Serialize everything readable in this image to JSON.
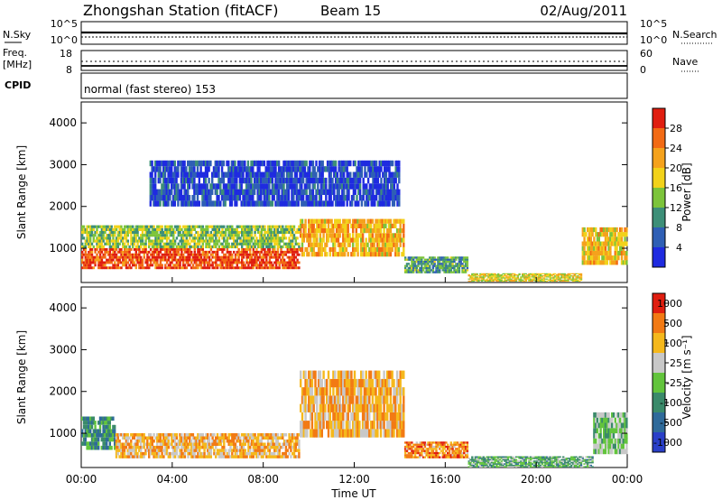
{
  "header": {
    "station": "Zhongshan Station (fitACF)",
    "beam": "Beam 15",
    "date": "02/Aug/2011"
  },
  "strip_nsky": {
    "left_label": "N.Sky",
    "right_label": "N.Search",
    "axis_top": "10^5",
    "axis_bottom": "10^0",
    "right_axis_top": "10^5",
    "right_axis_bottom": "10^0"
  },
  "strip_freq": {
    "left_label": "Freq.",
    "left_units": "[MHz]",
    "axis_top": "18",
    "axis_bottom": "8",
    "right_axis_top": "60",
    "right_axis_bottom": "0",
    "right_label": "Nave"
  },
  "cpid": {
    "label": "CPID",
    "mode_text": "normal (fast stereo) 153"
  },
  "axes": {
    "xlabel": "Time UT",
    "ylabel": "Slant Range [km]",
    "x_ticks": [
      "00:00",
      "04:00",
      "08:00",
      "12:00",
      "16:00",
      "20:00",
      "00:00"
    ],
    "y_ticks": [
      "1000",
      "2000",
      "3000",
      "4000"
    ]
  },
  "colorbars": {
    "power": {
      "label": "Power [dB]",
      "ticks": [
        "4",
        "8",
        "12",
        "16",
        "20",
        "24",
        "28"
      ],
      "colors": [
        "#1f2be0",
        "#2f5fb5",
        "#3d8f78",
        "#7cc43a",
        "#f2d21a",
        "#f5a21c",
        "#f26a14",
        "#e01e10"
      ]
    },
    "velocity": {
      "label": "Velocity [m s⁻¹]",
      "ticks": [
        "1000",
        "500",
        "100",
        "25",
        "-25",
        "-100",
        "-500",
        "-1000"
      ],
      "colors": [
        "#2a3fc8",
        "#2f6a9a",
        "#3a8a6a",
        "#62c43c",
        "#c8c8c8",
        "#f5b81c",
        "#f27a14",
        "#e01e10"
      ]
    }
  },
  "chart_data": [
    {
      "type": "heatmap",
      "name": "power",
      "x_range": [
        "00:00",
        "00:00"
      ],
      "ylim": [
        180,
        4500
      ],
      "bands": [
        {
          "t0": 0.0,
          "t1": 9.6,
          "range": [
            500,
            1000
          ],
          "level": 0.88
        },
        {
          "t0": 9.6,
          "t1": 14.2,
          "range": [
            800,
            1700
          ],
          "level": 0.65
        },
        {
          "t0": 0.0,
          "t1": 9.6,
          "range": [
            1000,
            1550
          ],
          "level": 0.45
        },
        {
          "t0": 14.2,
          "t1": 17.0,
          "range": [
            400,
            800
          ],
          "level": 0.35
        },
        {
          "t0": 17.0,
          "t1": 22.0,
          "range": [
            200,
            400
          ],
          "level": 0.55
        },
        {
          "t0": 22.0,
          "t1": 24.0,
          "range": [
            600,
            1500
          ],
          "level": 0.6
        },
        {
          "t0": 3.0,
          "t1": 14.0,
          "range": [
            2000,
            3100
          ],
          "level": 0.12
        }
      ]
    },
    {
      "type": "heatmap",
      "name": "velocity",
      "x_range": [
        "00:00",
        "00:00"
      ],
      "ylim": [
        180,
        4500
      ],
      "bands": [
        {
          "t0": 0.0,
          "t1": 1.5,
          "range": [
            600,
            1400
          ],
          "level": 0.3
        },
        {
          "t0": 1.5,
          "t1": 9.6,
          "range": [
            400,
            1000
          ],
          "level": 0.7
        },
        {
          "t0": 9.6,
          "t1": 14.2,
          "range": [
            900,
            2500
          ],
          "level": 0.7
        },
        {
          "t0": 14.2,
          "t1": 17.0,
          "range": [
            400,
            800
          ],
          "level": 0.78
        },
        {
          "t0": 17.0,
          "t1": 22.5,
          "range": [
            180,
            450
          ],
          "level": 0.4
        },
        {
          "t0": 22.5,
          "t1": 24.0,
          "range": [
            500,
            1500
          ],
          "level": 0.45
        }
      ]
    }
  ]
}
